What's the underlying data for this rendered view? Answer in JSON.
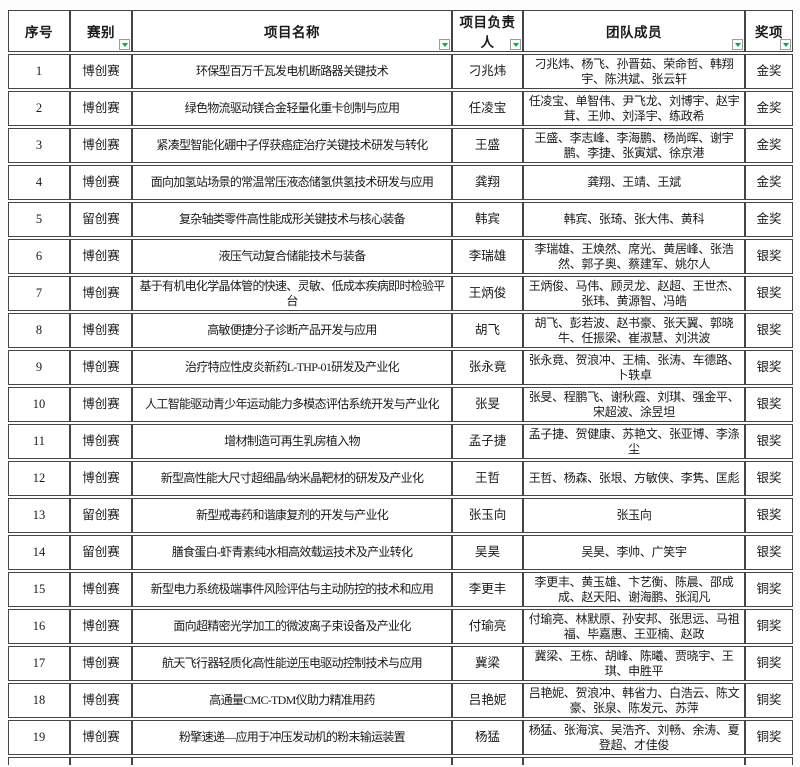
{
  "colors": {
    "grid_border": "#454545",
    "filter_arrow_green": "#1f9d55",
    "cell_background": "#ffffff"
  },
  "icons": {
    "filter": "filter-dropdown-icon"
  },
  "table": {
    "columns": [
      {
        "key": "index",
        "label": "序号",
        "filter": false
      },
      {
        "key": "category",
        "label": "赛别",
        "filter": true
      },
      {
        "key": "project",
        "label": "项目名称",
        "filter": true
      },
      {
        "key": "leader",
        "label": "项目负责人",
        "filter": true
      },
      {
        "key": "team",
        "label": "团队成员",
        "filter": true
      },
      {
        "key": "award",
        "label": "奖项",
        "filter": true
      }
    ],
    "rows": [
      {
        "index": "1",
        "category": "博创赛",
        "project": "环保型百万千瓦发电机断路器关键技术",
        "leader": "刁兆炜",
        "team": "刁兆炜、杨飞、孙晋茹、荣命哲、韩翔宇、陈洪斌、张云轩",
        "award": "金奖"
      },
      {
        "index": "2",
        "category": "博创赛",
        "project": "绿色物流驱动镁合金轻量化重卡创制与应用",
        "leader": "任凌宝",
        "team": "任凌宝、单智伟、尹飞龙、刘博宇、赵宇茸、王帅、刘泽宇、练政希",
        "award": "金奖"
      },
      {
        "index": "3",
        "category": "博创赛",
        "project": "紧凑型智能化硼中子俘获癌症治疗关键技术研发与转化",
        "leader": "王盛",
        "team": "王盛、李志峰、李海鹏、杨尚晖、谢宇鹏、李捷、张寅斌、徐京港",
        "award": "金奖"
      },
      {
        "index": "4",
        "category": "博创赛",
        "project": "面向加氢站场景的常温常压液态储氢供氢技术研发与应用",
        "leader": "龚翔",
        "team": "龚翔、王靖、王斌",
        "award": "金奖"
      },
      {
        "index": "5",
        "category": "留创赛",
        "project": "复杂轴类零件高性能成形关键技术与核心装备",
        "leader": "韩宾",
        "team": "韩宾、张琦、张大伟、黄科",
        "award": "金奖"
      },
      {
        "index": "6",
        "category": "博创赛",
        "project": "液压气动复合储能技术与装备",
        "leader": "李瑞雄",
        "team": "李瑞雄、王焕然、席光、黄居峰、张浩然、郭子奥、蔡建军、姚尔人",
        "award": "银奖"
      },
      {
        "index": "7",
        "category": "博创赛",
        "project": "基于有机电化学晶体管的快速、灵敏、低成本疾病即时检验平台",
        "leader": "王炳俊",
        "team": "王炳俊、马伟、顾灵龙、赵超、王世杰、张玮、黄源智、冯皓",
        "award": "银奖"
      },
      {
        "index": "8",
        "category": "博创赛",
        "project": "高敏便捷分子诊断产品开发与应用",
        "leader": "胡飞",
        "team": "胡飞、彭若波、赵书豪、张天翼、郭晓牛、任振梁、崔淑慧、刘洪波",
        "award": "银奖"
      },
      {
        "index": "9",
        "category": "博创赛",
        "project": "治疗特应性皮炎新药L-THP-01研发及产业化",
        "leader": "张永竟",
        "team": "张永竟、贺浪冲、王楠、张涛、车德路、卜轶卓",
        "award": "银奖"
      },
      {
        "index": "10",
        "category": "博创赛",
        "project": "人工智能驱动青少年运动能力多模态评估系统开发与产业化",
        "leader": "张旻",
        "team": "张旻、程鹏飞、谢秋霞、刘琪、强金平、宋超波、涂昱坦",
        "award": "银奖"
      },
      {
        "index": "11",
        "category": "博创赛",
        "project": "增材制造可再生乳房植入物",
        "leader": "孟子捷",
        "team": "孟子捷、贺健康、苏艳文、张亚博、李涤尘",
        "award": "银奖"
      },
      {
        "index": "12",
        "category": "博创赛",
        "project": "新型高性能大尺寸超细晶/纳米晶靶材的研发及产业化",
        "leader": "王哲",
        "team": "王哲、杨森、张垠、方敏侠、李隽、匡彪",
        "award": "银奖"
      },
      {
        "index": "13",
        "category": "留创赛",
        "project": "新型戒毒药和谐康复剂的开发与产业化",
        "leader": "张玉向",
        "team": "张玉向",
        "award": "银奖"
      },
      {
        "index": "14",
        "category": "留创赛",
        "project": "膳食蛋白-虾青素纯水相高效载运技术及产业转化",
        "leader": "吴昊",
        "team": "吴昊、李帅、广笑宇",
        "award": "银奖"
      },
      {
        "index": "15",
        "category": "博创赛",
        "project": "新型电力系统极端事件风险评估与主动防控的技术和应用",
        "leader": "李更丰",
        "team": "李更丰、黄玉雄、卞艺衡、陈晨、邵成成、赵天阳、谢海鹏、张润凡",
        "award": "铜奖"
      },
      {
        "index": "16",
        "category": "博创赛",
        "project": "面向超精密光学加工的微波离子束设备及产业化",
        "leader": "付瑜亮",
        "team": "付瑜亮、林默原、孙安邦、张思远、马祖福、毕嘉惠、王亚楠、赵政",
        "award": "铜奖"
      },
      {
        "index": "17",
        "category": "博创赛",
        "project": "航天飞行器轻质化高性能逆压电驱动控制技术与应用",
        "leader": "冀梁",
        "team": "冀梁、王栋、胡峰、陈曦、贾晓宇、王琪、申胜平",
        "award": "铜奖"
      },
      {
        "index": "18",
        "category": "博创赛",
        "project": "高通量CMC-TDM仪助力精准用药",
        "leader": "吕艳妮",
        "team": "吕艳妮、贺浪冲、韩省力、白浩云、陈文豪、张泉、陈发元、苏萍",
        "award": "铜奖"
      },
      {
        "index": "19",
        "category": "博创赛",
        "project": "粉擎速递—应用于冲压发动机的粉末输运装置",
        "leader": "杨猛",
        "team": "杨猛、张海滨、吴浩齐、刘畅、余涛、夏登超、才佳俊",
        "award": "铜奖"
      }
    ]
  }
}
